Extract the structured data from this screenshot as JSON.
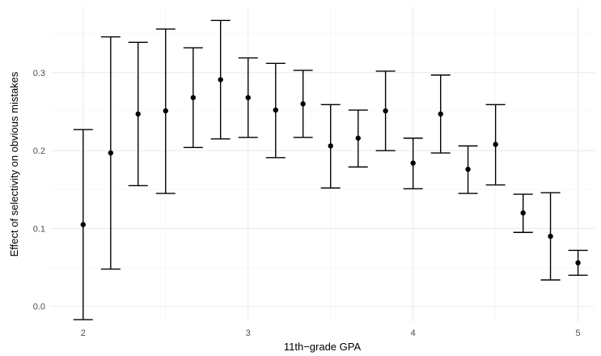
{
  "chart_data": {
    "type": "scatter",
    "subtype": "point-with-errorbars",
    "title": "",
    "xlabel": "11th−grade GPA",
    "ylabel": "Effect of selectivity on obvious mistakes",
    "xlim": [
      1.8,
      5.1
    ],
    "ylim": [
      -0.02,
      0.385
    ],
    "x_ticks": [
      2,
      3,
      4,
      5
    ],
    "y_ticks": [
      0.0,
      0.1,
      0.2,
      0.3
    ],
    "x_tick_labels": [
      "2",
      "3",
      "4",
      "5"
    ],
    "y_tick_labels": [
      "0.0",
      "0.1",
      "0.2",
      "0.3"
    ],
    "grid": true,
    "legend": "none",
    "point_color": "#000000",
    "points": [
      {
        "x": 2.0,
        "y": 0.105,
        "ymin": -0.017,
        "ymax": 0.227
      },
      {
        "x": 2.167,
        "y": 0.197,
        "ymin": 0.048,
        "ymax": 0.346
      },
      {
        "x": 2.333,
        "y": 0.247,
        "ymin": 0.155,
        "ymax": 0.339
      },
      {
        "x": 2.5,
        "y": 0.251,
        "ymin": 0.145,
        "ymax": 0.356
      },
      {
        "x": 2.667,
        "y": 0.268,
        "ymin": 0.204,
        "ymax": 0.332
      },
      {
        "x": 2.833,
        "y": 0.291,
        "ymin": 0.215,
        "ymax": 0.367
      },
      {
        "x": 3.0,
        "y": 0.268,
        "ymin": 0.217,
        "ymax": 0.319
      },
      {
        "x": 3.167,
        "y": 0.252,
        "ymin": 0.191,
        "ymax": 0.312
      },
      {
        "x": 3.333,
        "y": 0.26,
        "ymin": 0.217,
        "ymax": 0.303
      },
      {
        "x": 3.5,
        "y": 0.206,
        "ymin": 0.152,
        "ymax": 0.259
      },
      {
        "x": 3.667,
        "y": 0.216,
        "ymin": 0.179,
        "ymax": 0.252
      },
      {
        "x": 3.833,
        "y": 0.251,
        "ymin": 0.2,
        "ymax": 0.302
      },
      {
        "x": 4.0,
        "y": 0.184,
        "ymin": 0.151,
        "ymax": 0.216
      },
      {
        "x": 4.167,
        "y": 0.247,
        "ymin": 0.197,
        "ymax": 0.297
      },
      {
        "x": 4.333,
        "y": 0.176,
        "ymin": 0.145,
        "ymax": 0.206
      },
      {
        "x": 4.5,
        "y": 0.208,
        "ymin": 0.156,
        "ymax": 0.259
      },
      {
        "x": 4.667,
        "y": 0.12,
        "ymin": 0.095,
        "ymax": 0.144
      },
      {
        "x": 4.833,
        "y": 0.09,
        "ymin": 0.034,
        "ymax": 0.146
      },
      {
        "x": 5.0,
        "y": 0.056,
        "ymin": 0.04,
        "ymax": 0.072
      }
    ]
  }
}
